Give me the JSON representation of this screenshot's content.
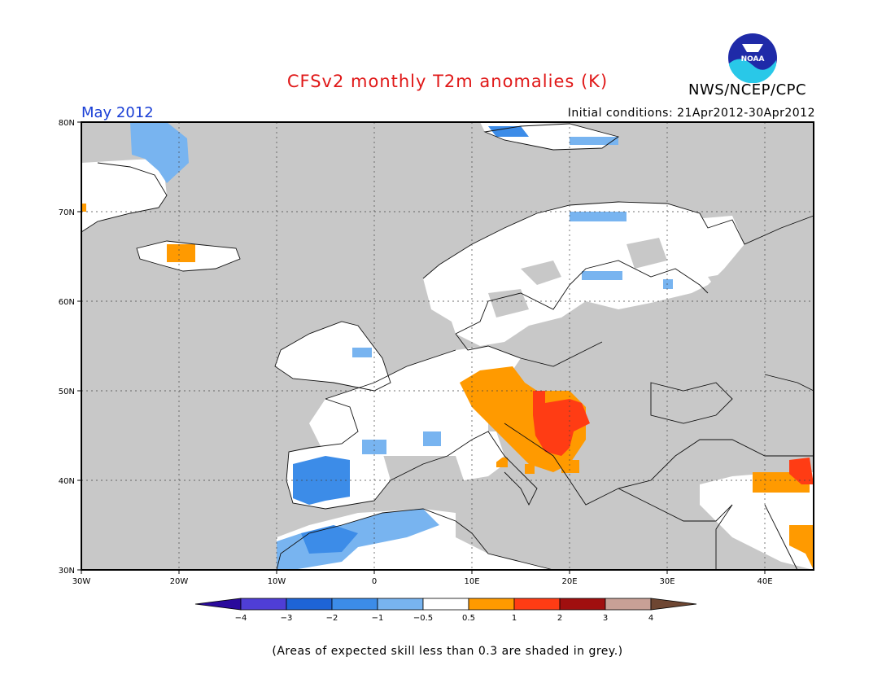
{
  "header": {
    "title": "CFSv2 monthly T2m anomalies (K)",
    "agency": "NWS/NCEP/CPC",
    "logo_text": "NOAA",
    "month": "May 2012",
    "initial_conditions": "Initial conditions: 21Apr2012-30Apr2012"
  },
  "map": {
    "lat_labels": [
      "80N",
      "70N",
      "60N",
      "50N",
      "40N",
      "30N"
    ],
    "lon_labels": [
      "30W",
      "20W",
      "10W",
      "0",
      "10E",
      "20E",
      "30E",
      "40E"
    ],
    "lat_range": [
      30,
      80
    ],
    "lon_range": [
      -30,
      45
    ],
    "grey_color": "#c8c8c8"
  },
  "colorbar": {
    "colors": [
      "#2a0a9c",
      "#4f3ed6",
      "#1e64d6",
      "#3c8ce8",
      "#78b4f0",
      "#ffffff",
      "#ff9a00",
      "#ff3c14",
      "#a00f0f",
      "#c8a096",
      "#6e4632"
    ],
    "labels": [
      "−4",
      "−3",
      "−2",
      "−1",
      "−0.5",
      "0.5",
      "1",
      "2",
      "3",
      "4"
    ]
  },
  "footnote": "(Areas of expected skill less than 0.3 are shaded in grey.)"
}
